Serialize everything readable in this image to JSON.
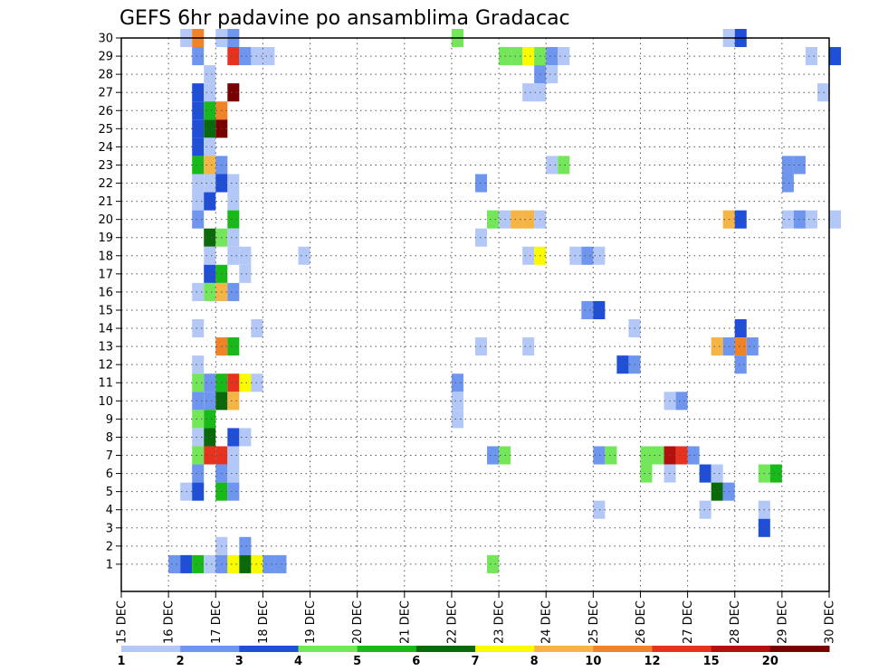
{
  "chart_data": {
    "type": "heatmap",
    "title": "GEFS 6hr padavine po ansamblima Gradacac",
    "x_labels": [
      "15 DEC",
      "16 DEC",
      "17 DEC",
      "18 DEC",
      "19 DEC",
      "20 DEC",
      "21 DEC",
      "22 DEC",
      "23 DEC",
      "24 DEC",
      "25 DEC",
      "26 DEC",
      "27 DEC",
      "28 DEC",
      "29 DEC",
      "30 DEC"
    ],
    "y_labels": [
      "1",
      "2",
      "3",
      "4",
      "5",
      "6",
      "7",
      "8",
      "9",
      "10",
      "11",
      "12",
      "13",
      "14",
      "15",
      "16",
      "17",
      "18",
      "19",
      "20",
      "21",
      "22",
      "23",
      "24",
      "25",
      "26",
      "27",
      "28",
      "29",
      "30"
    ],
    "x_range": [
      "15 DEC",
      "30 DEC"
    ],
    "time_step_hours": 6,
    "grid": "dotted",
    "colorbar": {
      "labels": [
        "1",
        "2",
        "3",
        "4",
        "5",
        "6",
        "7",
        "8",
        "10",
        "12",
        "15",
        "20"
      ],
      "colors": [
        "#b4c8f8",
        "#6e96ee",
        "#1e4fd6",
        "#73e65a",
        "#19b919",
        "#0a690a",
        "#fafa00",
        "#f5b446",
        "#f08228",
        "#e6321e",
        "#b40f0f",
        "#780000"
      ]
    },
    "cells": [
      {
        "m": 30,
        "t": "16 DEC 06",
        "c": 1
      },
      {
        "m": 30,
        "t": "16 DEC 12",
        "c": 9
      },
      {
        "m": 30,
        "t": "17 DEC 00",
        "c": 1
      },
      {
        "m": 30,
        "t": "17 DEC 06",
        "c": 2
      },
      {
        "m": 30,
        "t": "22 DEC 00",
        "c": 4
      },
      {
        "m": 30,
        "t": "27 DEC 18",
        "c": 1
      },
      {
        "m": 30,
        "t": "28 DEC 00",
        "c": 3
      },
      {
        "m": 29,
        "t": "16 DEC 12",
        "c": 2
      },
      {
        "m": 29,
        "t": "17 DEC 06",
        "c": 10
      },
      {
        "m": 29,
        "t": "17 DEC 12",
        "c": 2
      },
      {
        "m": 29,
        "t": "17 DEC 18",
        "c": 1
      },
      {
        "m": 29,
        "t": "18 DEC 00",
        "c": 1
      },
      {
        "m": 29,
        "t": "23 DEC 00",
        "c": 4
      },
      {
        "m": 29,
        "t": "23 DEC 06",
        "c": 4
      },
      {
        "m": 29,
        "t": "23 DEC 12",
        "c": 7
      },
      {
        "m": 29,
        "t": "23 DEC 18",
        "c": 4
      },
      {
        "m": 29,
        "t": "24 DEC 00",
        "c": 2
      },
      {
        "m": 29,
        "t": "24 DEC 06",
        "c": 1
      },
      {
        "m": 29,
        "t": "29 DEC 12",
        "c": 1
      },
      {
        "m": 29,
        "t": "30 DEC 00",
        "c": 3
      },
      {
        "m": 28,
        "t": "16 DEC 18",
        "c": 1
      },
      {
        "m": 28,
        "t": "23 DEC 18",
        "c": 2
      },
      {
        "m": 28,
        "t": "24 DEC 00",
        "c": 1
      },
      {
        "m": 27,
        "t": "16 DEC 12",
        "c": 3
      },
      {
        "m": 27,
        "t": "16 DEC 18",
        "c": 1
      },
      {
        "m": 27,
        "t": "17 DEC 06",
        "c": 12
      },
      {
        "m": 27,
        "t": "23 DEC 12",
        "c": 1
      },
      {
        "m": 27,
        "t": "23 DEC 18",
        "c": 1
      },
      {
        "m": 27,
        "t": "29 DEC 18",
        "c": 1
      },
      {
        "m": 26,
        "t": "16 DEC 12",
        "c": 3
      },
      {
        "m": 26,
        "t": "16 DEC 18",
        "c": 5
      },
      {
        "m": 26,
        "t": "17 DEC 00",
        "c": 9
      },
      {
        "m": 25,
        "t": "16 DEC 12",
        "c": 3
      },
      {
        "m": 25,
        "t": "16 DEC 18",
        "c": 6
      },
      {
        "m": 25,
        "t": "17 DEC 00",
        "c": 12
      },
      {
        "m": 24,
        "t": "16 DEC 12",
        "c": 3
      },
      {
        "m": 24,
        "t": "16 DEC 18",
        "c": 1
      },
      {
        "m": 23,
        "t": "16 DEC 12",
        "c": 5
      },
      {
        "m": 23,
        "t": "16 DEC 18",
        "c": 8
      },
      {
        "m": 23,
        "t": "17 DEC 00",
        "c": 2
      },
      {
        "m": 23,
        "t": "24 DEC 00",
        "c": 1
      },
      {
        "m": 23,
        "t": "24 DEC 06",
        "c": 4
      },
      {
        "m": 23,
        "t": "29 DEC 00",
        "c": 2
      },
      {
        "m": 23,
        "t": "29 DEC 06",
        "c": 2
      },
      {
        "m": 22,
        "t": "16 DEC 12",
        "c": 1
      },
      {
        "m": 22,
        "t": "16 DEC 18",
        "c": 1
      },
      {
        "m": 22,
        "t": "17 DEC 00",
        "c": 3
      },
      {
        "m": 22,
        "t": "17 DEC 06",
        "c": 1
      },
      {
        "m": 22,
        "t": "22 DEC 12",
        "c": 2
      },
      {
        "m": 22,
        "t": "29 DEC 00",
        "c": 2
      },
      {
        "m": 21,
        "t": "16 DEC 12",
        "c": 1
      },
      {
        "m": 21,
        "t": "16 DEC 18",
        "c": 3
      },
      {
        "m": 21,
        "t": "17 DEC 06",
        "c": 1
      },
      {
        "m": 20,
        "t": "16 DEC 12",
        "c": 2
      },
      {
        "m": 20,
        "t": "17 DEC 06",
        "c": 5
      },
      {
        "m": 20,
        "t": "22 DEC 18",
        "c": 4
      },
      {
        "m": 20,
        "t": "23 DEC 00",
        "c": 1
      },
      {
        "m": 20,
        "t": "23 DEC 06",
        "c": 8
      },
      {
        "m": 20,
        "t": "23 DEC 12",
        "c": 8
      },
      {
        "m": 20,
        "t": "23 DEC 18",
        "c": 1
      },
      {
        "m": 20,
        "t": "27 DEC 18",
        "c": 8
      },
      {
        "m": 20,
        "t": "28 DEC 00",
        "c": 3
      },
      {
        "m": 20,
        "t": "29 DEC 00",
        "c": 1
      },
      {
        "m": 20,
        "t": "29 DEC 06",
        "c": 2
      },
      {
        "m": 20,
        "t": "29 DEC 12",
        "c": 1
      },
      {
        "m": 20,
        "t": "30 DEC 00",
        "c": 1
      },
      {
        "m": 19,
        "t": "16 DEC 18",
        "c": 6
      },
      {
        "m": 19,
        "t": "17 DEC 00",
        "c": 4
      },
      {
        "m": 19,
        "t": "17 DEC 06",
        "c": 1
      },
      {
        "m": 19,
        "t": "22 DEC 12",
        "c": 1
      },
      {
        "m": 18,
        "t": "16 DEC 18",
        "c": 1
      },
      {
        "m": 18,
        "t": "17 DEC 06",
        "c": 1
      },
      {
        "m": 18,
        "t": "17 DEC 12",
        "c": 1
      },
      {
        "m": 18,
        "t": "18 DEC 18",
        "c": 1
      },
      {
        "m": 18,
        "t": "23 DEC 12",
        "c": 1
      },
      {
        "m": 18,
        "t": "23 DEC 18",
        "c": 7
      },
      {
        "m": 18,
        "t": "24 DEC 12",
        "c": 1
      },
      {
        "m": 18,
        "t": "24 DEC 18",
        "c": 2
      },
      {
        "m": 18,
        "t": "25 DEC 00",
        "c": 1
      },
      {
        "m": 17,
        "t": "16 DEC 18",
        "c": 3
      },
      {
        "m": 17,
        "t": "17 DEC 00",
        "c": 5
      },
      {
        "m": 17,
        "t": "17 DEC 12",
        "c": 1
      },
      {
        "m": 16,
        "t": "16 DEC 12",
        "c": 1
      },
      {
        "m": 16,
        "t": "16 DEC 18",
        "c": 4
      },
      {
        "m": 16,
        "t": "17 DEC 00",
        "c": 8
      },
      {
        "m": 16,
        "t": "17 DEC 06",
        "c": 2
      },
      {
        "m": 15,
        "t": "24 DEC 18",
        "c": 2
      },
      {
        "m": 15,
        "t": "25 DEC 00",
        "c": 3
      },
      {
        "m": 14,
        "t": "16 DEC 12",
        "c": 1
      },
      {
        "m": 14,
        "t": "17 DEC 18",
        "c": 1
      },
      {
        "m": 14,
        "t": "25 DEC 18",
        "c": 1
      },
      {
        "m": 14,
        "t": "28 DEC 00",
        "c": 3
      },
      {
        "m": 13,
        "t": "17 DEC 00",
        "c": 9
      },
      {
        "m": 13,
        "t": "17 DEC 06",
        "c": 5
      },
      {
        "m": 13,
        "t": "22 DEC 12",
        "c": 1
      },
      {
        "m": 13,
        "t": "23 DEC 12",
        "c": 1
      },
      {
        "m": 13,
        "t": "27 DEC 12",
        "c": 8
      },
      {
        "m": 13,
        "t": "27 DEC 18",
        "c": 2
      },
      {
        "m": 13,
        "t": "28 DEC 00",
        "c": 9
      },
      {
        "m": 13,
        "t": "28 DEC 06",
        "c": 2
      },
      {
        "m": 12,
        "t": "16 DEC 12",
        "c": 1
      },
      {
        "m": 12,
        "t": "25 DEC 12",
        "c": 3
      },
      {
        "m": 12,
        "t": "25 DEC 18",
        "c": 2
      },
      {
        "m": 12,
        "t": "28 DEC 00",
        "c": 2
      },
      {
        "m": 11,
        "t": "16 DEC 12",
        "c": 4
      },
      {
        "m": 11,
        "t": "16 DEC 18",
        "c": 2
      },
      {
        "m": 11,
        "t": "17 DEC 00",
        "c": 5
      },
      {
        "m": 11,
        "t": "17 DEC 06",
        "c": 10
      },
      {
        "m": 11,
        "t": "17 DEC 12",
        "c": 7
      },
      {
        "m": 11,
        "t": "17 DEC 18",
        "c": 1
      },
      {
        "m": 11,
        "t": "22 DEC 00",
        "c": 2
      },
      {
        "m": 10,
        "t": "16 DEC 12",
        "c": 2
      },
      {
        "m": 10,
        "t": "16 DEC 18",
        "c": 2
      },
      {
        "m": 10,
        "t": "17 DEC 00",
        "c": 6
      },
      {
        "m": 10,
        "t": "17 DEC 06",
        "c": 8
      },
      {
        "m": 10,
        "t": "22 DEC 00",
        "c": 1
      },
      {
        "m": 10,
        "t": "26 DEC 12",
        "c": 1
      },
      {
        "m": 10,
        "t": "26 DEC 18",
        "c": 2
      },
      {
        "m": 9,
        "t": "16 DEC 12",
        "c": 4
      },
      {
        "m": 9,
        "t": "16 DEC 18",
        "c": 5
      },
      {
        "m": 9,
        "t": "22 DEC 00",
        "c": 1
      },
      {
        "m": 8,
        "t": "16 DEC 12",
        "c": 1
      },
      {
        "m": 8,
        "t": "16 DEC 18",
        "c": 6
      },
      {
        "m": 8,
        "t": "17 DEC 06",
        "c": 3
      },
      {
        "m": 8,
        "t": "17 DEC 12",
        "c": 1
      },
      {
        "m": 7,
        "t": "16 DEC 12",
        "c": 4
      },
      {
        "m": 7,
        "t": "16 DEC 18",
        "c": 10
      },
      {
        "m": 7,
        "t": "17 DEC 00",
        "c": 10
      },
      {
        "m": 7,
        "t": "17 DEC 06",
        "c": 1
      },
      {
        "m": 7,
        "t": "22 DEC 18",
        "c": 2
      },
      {
        "m": 7,
        "t": "23 DEC 00",
        "c": 4
      },
      {
        "m": 7,
        "t": "25 DEC 00",
        "c": 2
      },
      {
        "m": 7,
        "t": "25 DEC 06",
        "c": 4
      },
      {
        "m": 7,
        "t": "26 DEC 00",
        "c": 4
      },
      {
        "m": 7,
        "t": "26 DEC 06",
        "c": 4
      },
      {
        "m": 7,
        "t": "26 DEC 12",
        "c": 11
      },
      {
        "m": 7,
        "t": "26 DEC 18",
        "c": 10
      },
      {
        "m": 7,
        "t": "27 DEC 00",
        "c": 2
      },
      {
        "m": 6,
        "t": "16 DEC 12",
        "c": 2
      },
      {
        "m": 6,
        "t": "17 DEC 00",
        "c": 2
      },
      {
        "m": 6,
        "t": "17 DEC 06",
        "c": 1
      },
      {
        "m": 6,
        "t": "26 DEC 00",
        "c": 4
      },
      {
        "m": 6,
        "t": "26 DEC 12",
        "c": 1
      },
      {
        "m": 6,
        "t": "27 DEC 06",
        "c": 3
      },
      {
        "m": 6,
        "t": "27 DEC 12",
        "c": 1
      },
      {
        "m": 6,
        "t": "28 DEC 12",
        "c": 4
      },
      {
        "m": 6,
        "t": "28 DEC 18",
        "c": 5
      },
      {
        "m": 5,
        "t": "16 DEC 06",
        "c": 1
      },
      {
        "m": 5,
        "t": "16 DEC 12",
        "c": 3
      },
      {
        "m": 5,
        "t": "17 DEC 00",
        "c": 5
      },
      {
        "m": 5,
        "t": "17 DEC 06",
        "c": 2
      },
      {
        "m": 5,
        "t": "27 DEC 12",
        "c": 6
      },
      {
        "m": 5,
        "t": "27 DEC 18",
        "c": 2
      },
      {
        "m": 4,
        "t": "25 DEC 00",
        "c": 1
      },
      {
        "m": 4,
        "t": "27 DEC 06",
        "c": 1
      },
      {
        "m": 4,
        "t": "28 DEC 12",
        "c": 1
      },
      {
        "m": 3,
        "t": "28 DEC 12",
        "c": 3
      },
      {
        "m": 2,
        "t": "17 DEC 00",
        "c": 1
      },
      {
        "m": 2,
        "t": "17 DEC 12",
        "c": 2
      },
      {
        "m": 1,
        "t": "16 DEC 00",
        "c": 2
      },
      {
        "m": 1,
        "t": "16 DEC 06",
        "c": 3
      },
      {
        "m": 1,
        "t": "16 DEC 12",
        "c": 5
      },
      {
        "m": 1,
        "t": "16 DEC 18",
        "c": 1
      },
      {
        "m": 1,
        "t": "17 DEC 00",
        "c": 2
      },
      {
        "m": 1,
        "t": "17 DEC 06",
        "c": 7
      },
      {
        "m": 1,
        "t": "17 DEC 12",
        "c": 6
      },
      {
        "m": 1,
        "t": "17 DEC 18",
        "c": 7
      },
      {
        "m": 1,
        "t": "18 DEC 00",
        "c": 2
      },
      {
        "m": 1,
        "t": "18 DEC 06",
        "c": 2
      },
      {
        "m": 1,
        "t": "22 DEC 18",
        "c": 4
      }
    ]
  }
}
